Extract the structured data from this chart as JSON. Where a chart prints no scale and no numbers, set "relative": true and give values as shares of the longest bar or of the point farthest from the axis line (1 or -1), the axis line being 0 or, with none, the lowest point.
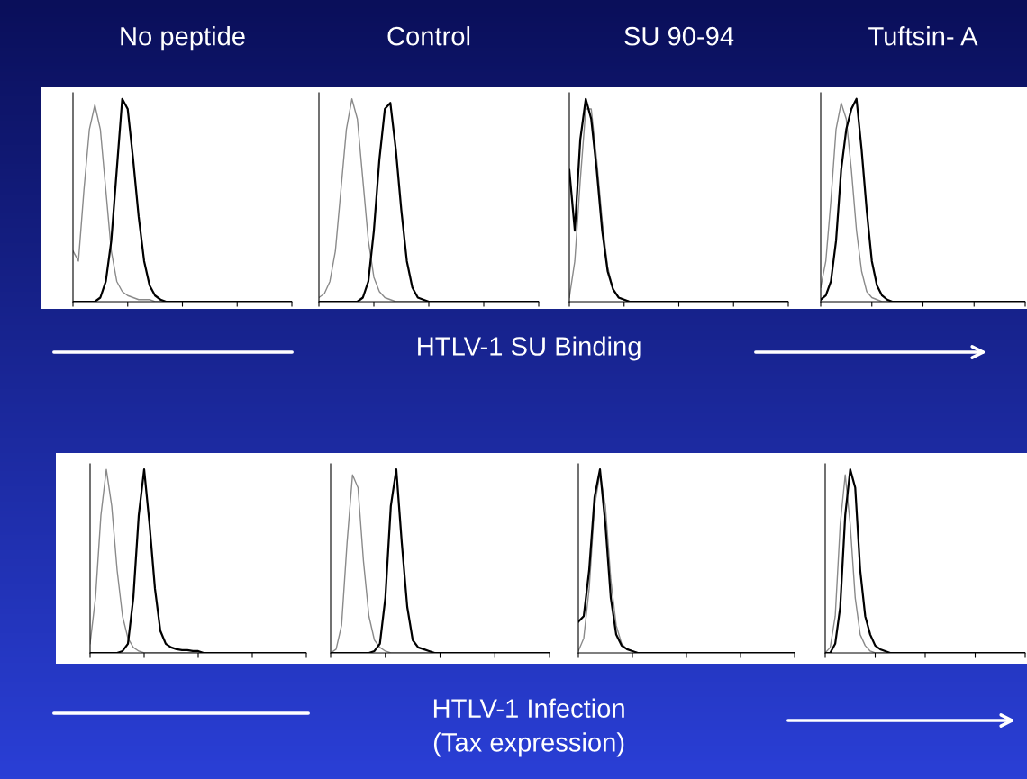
{
  "chart_data": [
    {
      "type": "line",
      "relative": true,
      "title": "No peptide",
      "xlabel": "HTLV-1 SU Binding",
      "categories": [
        null,
        null,
        null,
        null,
        null,
        null,
        null,
        null,
        null,
        null,
        null,
        null,
        null,
        null,
        null,
        null,
        null,
        null,
        null,
        null,
        null,
        null,
        null,
        null,
        null,
        null,
        null,
        null,
        null,
        null,
        null,
        null,
        null,
        null,
        null,
        null,
        null,
        null,
        null,
        null,
        null
      ],
      "series": [
        {
          "color": "#8a8a8a",
          "values": [
            0.25,
            0.2,
            0.55,
            0.85,
            0.97,
            0.85,
            0.55,
            0.25,
            0.1,
            0.05,
            0.03,
            0.02,
            0.01,
            0.01,
            0.01,
            0,
            0,
            0,
            0,
            0,
            0,
            0,
            0,
            0,
            0,
            0,
            0,
            0,
            0,
            0,
            0,
            0,
            0,
            0,
            0,
            0,
            0,
            0,
            0,
            0,
            0
          ]
        },
        {
          "color": "#000000",
          "values": [
            0,
            0,
            0,
            0,
            0,
            0.02,
            0.1,
            0.3,
            0.65,
            1.0,
            0.95,
            0.7,
            0.42,
            0.2,
            0.08,
            0.03,
            0.01,
            0,
            0,
            0,
            0,
            0,
            0,
            0,
            0,
            0,
            0,
            0,
            0,
            0,
            0,
            0,
            0,
            0,
            0,
            0,
            0,
            0,
            0,
            0,
            0
          ]
        }
      ]
    },
    {
      "type": "line",
      "relative": true,
      "title": "Control",
      "categories": [
        null,
        null,
        null,
        null,
        null,
        null,
        null,
        null,
        null,
        null,
        null,
        null,
        null,
        null,
        null,
        null,
        null,
        null,
        null,
        null,
        null,
        null,
        null,
        null,
        null,
        null,
        null,
        null,
        null,
        null,
        null,
        null,
        null,
        null,
        null,
        null,
        null,
        null,
        null,
        null,
        null
      ],
      "series": [
        {
          "color": "#8a8a8a",
          "values": [
            0.02,
            0.04,
            0.1,
            0.25,
            0.55,
            0.85,
            1.0,
            0.9,
            0.6,
            0.3,
            0.12,
            0.05,
            0.02,
            0.01,
            0,
            0,
            0,
            0,
            0,
            0,
            0,
            0,
            0,
            0,
            0,
            0,
            0,
            0,
            0,
            0,
            0,
            0,
            0,
            0,
            0,
            0,
            0,
            0,
            0,
            0,
            0
          ]
        },
        {
          "color": "#000000",
          "values": [
            0,
            0,
            0,
            0,
            0,
            0,
            0,
            0,
            0.02,
            0.1,
            0.35,
            0.7,
            0.95,
            0.98,
            0.75,
            0.45,
            0.2,
            0.07,
            0.02,
            0.01,
            0,
            0,
            0,
            0,
            0,
            0,
            0,
            0,
            0,
            0,
            0,
            0,
            0,
            0,
            0,
            0,
            0,
            0,
            0,
            0,
            0
          ]
        }
      ]
    },
    {
      "type": "line",
      "relative": true,
      "title": "SU 90-94",
      "categories": [
        null,
        null,
        null,
        null,
        null,
        null,
        null,
        null,
        null,
        null,
        null,
        null,
        null,
        null,
        null,
        null,
        null,
        null,
        null,
        null,
        null,
        null,
        null,
        null,
        null,
        null,
        null,
        null,
        null,
        null,
        null,
        null,
        null,
        null,
        null,
        null,
        null,
        null,
        null,
        null,
        null
      ],
      "series": [
        {
          "color": "#8a8a8a",
          "values": [
            0.02,
            0.2,
            0.6,
            0.95,
            0.95,
            0.7,
            0.4,
            0.17,
            0.06,
            0.02,
            0.01,
            0,
            0,
            0,
            0,
            0,
            0,
            0,
            0,
            0,
            0,
            0,
            0,
            0,
            0,
            0,
            0,
            0,
            0,
            0,
            0,
            0,
            0,
            0,
            0,
            0,
            0,
            0,
            0,
            0,
            0
          ]
        },
        {
          "color": "#000000",
          "values": [
            0.65,
            0.35,
            0.8,
            1.0,
            0.9,
            0.65,
            0.35,
            0.15,
            0.06,
            0.02,
            0.01,
            0,
            0,
            0,
            0,
            0,
            0,
            0,
            0,
            0,
            0,
            0,
            0,
            0,
            0,
            0,
            0,
            0,
            0,
            0,
            0,
            0,
            0,
            0,
            0,
            0,
            0,
            0,
            0,
            0,
            0
          ]
        }
      ]
    },
    {
      "type": "line",
      "relative": true,
      "title": "Tuftsin- A",
      "categories": [
        null,
        null,
        null,
        null,
        null,
        null,
        null,
        null,
        null,
        null,
        null,
        null,
        null,
        null,
        null,
        null,
        null,
        null,
        null,
        null,
        null,
        null,
        null,
        null,
        null,
        null,
        null,
        null,
        null,
        null,
        null,
        null,
        null,
        null,
        null,
        null,
        null,
        null,
        null,
        null,
        null
      ],
      "series": [
        {
          "color": "#8a8a8a",
          "values": [
            0.07,
            0.2,
            0.5,
            0.85,
            0.98,
            0.9,
            0.65,
            0.35,
            0.15,
            0.05,
            0.02,
            0.01,
            0,
            0,
            0,
            0,
            0,
            0,
            0,
            0,
            0,
            0,
            0,
            0,
            0,
            0,
            0,
            0,
            0,
            0,
            0,
            0,
            0,
            0,
            0,
            0,
            0,
            0,
            0,
            0,
            0
          ]
        },
        {
          "color": "#000000",
          "values": [
            0.01,
            0.03,
            0.1,
            0.3,
            0.65,
            0.85,
            0.95,
            1.0,
            0.75,
            0.45,
            0.2,
            0.08,
            0.03,
            0.01,
            0,
            0,
            0,
            0,
            0,
            0,
            0,
            0,
            0,
            0,
            0,
            0,
            0,
            0,
            0,
            0,
            0,
            0,
            0,
            0,
            0,
            0,
            0,
            0,
            0,
            0,
            0
          ]
        }
      ]
    },
    {
      "type": "line",
      "relative": true,
      "xlabel": "HTLV-1 Infection\n(Tax expression)",
      "categories": [
        null,
        null,
        null,
        null,
        null,
        null,
        null,
        null,
        null,
        null,
        null,
        null,
        null,
        null,
        null,
        null,
        null,
        null,
        null,
        null,
        null,
        null,
        null,
        null,
        null,
        null,
        null,
        null,
        null,
        null,
        null,
        null,
        null,
        null,
        null,
        null,
        null,
        null,
        null,
        null,
        null
      ],
      "series": [
        {
          "color": "#8a8a8a",
          "values": [
            0.05,
            0.3,
            0.75,
            1.0,
            0.8,
            0.45,
            0.2,
            0.08,
            0.03,
            0.01,
            0,
            0,
            0,
            0,
            0,
            0,
            0,
            0,
            0,
            0,
            0,
            0,
            0,
            0,
            0,
            0,
            0,
            0,
            0,
            0,
            0,
            0,
            0,
            0,
            0,
            0,
            0,
            0,
            0,
            0,
            0
          ]
        },
        {
          "color": "#000000",
          "values": [
            0,
            0,
            0,
            0,
            0,
            0,
            0.01,
            0.05,
            0.3,
            0.75,
            1.0,
            0.7,
            0.35,
            0.12,
            0.05,
            0.03,
            0.02,
            0.015,
            0.015,
            0.01,
            0.01,
            0,
            0,
            0,
            0,
            0,
            0,
            0,
            0,
            0,
            0,
            0,
            0,
            0,
            0,
            0,
            0,
            0,
            0,
            0,
            0
          ]
        }
      ]
    },
    {
      "type": "line",
      "relative": true,
      "categories": [
        null,
        null,
        null,
        null,
        null,
        null,
        null,
        null,
        null,
        null,
        null,
        null,
        null,
        null,
        null,
        null,
        null,
        null,
        null,
        null,
        null,
        null,
        null,
        null,
        null,
        null,
        null,
        null,
        null,
        null,
        null,
        null,
        null,
        null,
        null,
        null,
        null,
        null,
        null,
        null,
        null
      ],
      "series": [
        {
          "color": "#8a8a8a",
          "values": [
            0,
            0.02,
            0.15,
            0.6,
            0.97,
            0.9,
            0.5,
            0.2,
            0.07,
            0.03,
            0.01,
            0,
            0,
            0,
            0,
            0,
            0,
            0,
            0,
            0,
            0,
            0,
            0,
            0,
            0,
            0,
            0,
            0,
            0,
            0,
            0,
            0,
            0,
            0,
            0,
            0,
            0,
            0,
            0,
            0,
            0
          ]
        },
        {
          "color": "#000000",
          "values": [
            0,
            0,
            0,
            0,
            0,
            0,
            0,
            0,
            0.01,
            0.05,
            0.3,
            0.8,
            1.0,
            0.6,
            0.25,
            0.07,
            0.03,
            0.02,
            0.01,
            0,
            0,
            0,
            0,
            0,
            0,
            0,
            0,
            0,
            0,
            0,
            0,
            0,
            0,
            0,
            0,
            0,
            0,
            0,
            0,
            0,
            0
          ]
        }
      ]
    },
    {
      "type": "line",
      "relative": true,
      "categories": [
        null,
        null,
        null,
        null,
        null,
        null,
        null,
        null,
        null,
        null,
        null,
        null,
        null,
        null,
        null,
        null,
        null,
        null,
        null,
        null,
        null,
        null,
        null,
        null,
        null,
        null,
        null,
        null,
        null,
        null,
        null,
        null,
        null,
        null,
        null,
        null,
        null,
        null,
        null,
        null,
        null
      ],
      "series": [
        {
          "color": "#8a8a8a",
          "values": [
            0.01,
            0.08,
            0.35,
            0.8,
            0.98,
            0.8,
            0.4,
            0.15,
            0.05,
            0.02,
            0.01,
            0,
            0,
            0,
            0,
            0,
            0,
            0,
            0,
            0,
            0,
            0,
            0,
            0,
            0,
            0,
            0,
            0,
            0,
            0,
            0,
            0,
            0,
            0,
            0,
            0,
            0,
            0,
            0,
            0,
            0
          ]
        },
        {
          "color": "#000000",
          "values": [
            0.17,
            0.2,
            0.45,
            0.85,
            1.0,
            0.7,
            0.3,
            0.1,
            0.04,
            0.02,
            0.01,
            0,
            0,
            0,
            0,
            0,
            0,
            0,
            0,
            0,
            0,
            0,
            0,
            0,
            0,
            0,
            0,
            0,
            0,
            0,
            0,
            0,
            0,
            0,
            0,
            0,
            0,
            0,
            0,
            0,
            0
          ]
        }
      ]
    },
    {
      "type": "line",
      "relative": true,
      "categories": [
        null,
        null,
        null,
        null,
        null,
        null,
        null,
        null,
        null,
        null,
        null,
        null,
        null,
        null,
        null,
        null,
        null,
        null,
        null,
        null,
        null,
        null,
        null,
        null,
        null,
        null,
        null,
        null,
        null,
        null,
        null,
        null,
        null,
        null,
        null,
        null,
        null,
        null,
        null,
        null,
        null
      ],
      "series": [
        {
          "color": "#8a8a8a",
          "values": [
            0,
            0.03,
            0.2,
            0.7,
            0.97,
            0.7,
            0.3,
            0.1,
            0.04,
            0.01,
            0,
            0,
            0,
            0,
            0,
            0,
            0,
            0,
            0,
            0,
            0,
            0,
            0,
            0,
            0,
            0,
            0,
            0,
            0,
            0,
            0,
            0,
            0,
            0,
            0,
            0,
            0,
            0,
            0,
            0,
            0
          ]
        },
        {
          "color": "#000000",
          "values": [
            0,
            0,
            0.05,
            0.25,
            0.75,
            1.0,
            0.9,
            0.45,
            0.2,
            0.1,
            0.04,
            0.02,
            0.01,
            0,
            0,
            0,
            0,
            0,
            0,
            0,
            0,
            0,
            0,
            0,
            0,
            0,
            0,
            0,
            0,
            0,
            0,
            0,
            0,
            0,
            0,
            0,
            0,
            0,
            0,
            0,
            0
          ]
        }
      ]
    }
  ]
}
